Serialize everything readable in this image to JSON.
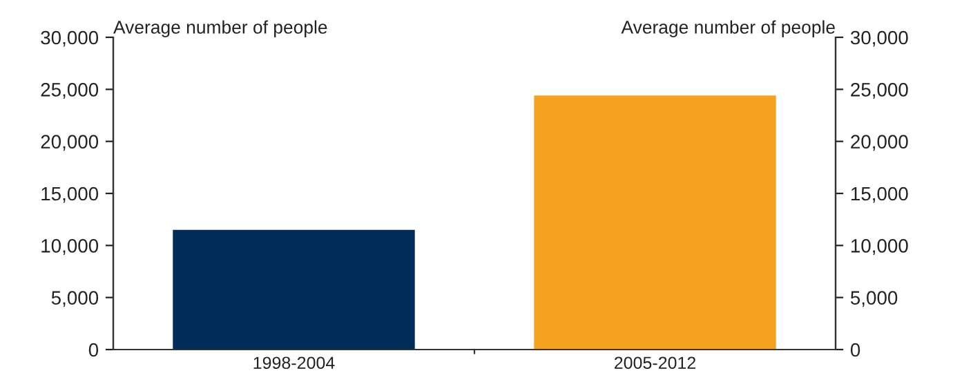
{
  "chart_data": {
    "type": "bar",
    "categories": [
      "1998-2004",
      "2005-2012"
    ],
    "values": [
      11500,
      24400
    ],
    "colors": [
      "#002c5a",
      "#f5a31e"
    ],
    "ylabel": "Average number of people",
    "y2label": "Average number of people",
    "ylim": [
      0,
      30000
    ],
    "yticks": [
      {
        "value": 0,
        "label": "0"
      },
      {
        "value": 5000,
        "label": "5,000"
      },
      {
        "value": 10000,
        "label": "10,000"
      },
      {
        "value": 15000,
        "label": "15,000"
      },
      {
        "value": 20000,
        "label": "20,000"
      },
      {
        "value": 25000,
        "label": "25,000"
      },
      {
        "value": 30000,
        "label": "30,000"
      }
    ],
    "y2lim": [
      0,
      30000
    ],
    "y2ticks": [
      {
        "value": 0,
        "label": "0"
      },
      {
        "value": 5000,
        "label": "5,000"
      },
      {
        "value": 10000,
        "label": "10,000"
      },
      {
        "value": 15000,
        "label": "15,000"
      },
      {
        "value": 20000,
        "label": "20,000"
      },
      {
        "value": 25000,
        "label": "25,000"
      },
      {
        "value": 30000,
        "label": "30,000"
      }
    ],
    "grid": false
  }
}
